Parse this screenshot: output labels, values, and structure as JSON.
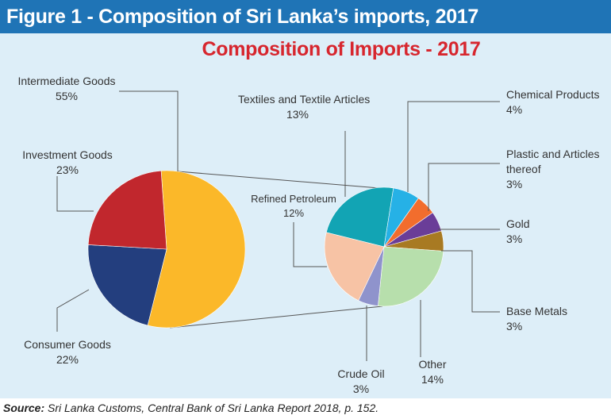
{
  "figure_title": "Figure 1 - Composition of Sri Lanka’s imports, 2017",
  "source": {
    "label": "Source:",
    "text": "Sri Lanka Customs, Central Bank of Sri Lanka Report 2018, p. 152."
  },
  "colors": {
    "header_bg": "#1f74b6",
    "panel_bg": "#ddeef8",
    "title": "#d7262e"
  },
  "chart_data": {
    "type": "pie",
    "title": "Composition of Imports - 2017",
    "main_pie": {
      "slices": [
        {
          "label": "Intermediate Goods",
          "value": 55,
          "value_label": "55%",
          "color": "#fbb829"
        },
        {
          "label": "Consumer Goods",
          "value": 22,
          "value_label": "22%",
          "color": "#233e7e"
        },
        {
          "label": "Investment Goods",
          "value": 23,
          "value_label": "23%",
          "color": "#c1272d"
        }
      ]
    },
    "breakdown_of": "Intermediate Goods",
    "breakdown_pie": {
      "slices": [
        {
          "label": "Textiles and Textile Articles",
          "value": 13,
          "value_label": "13%",
          "color": "#12a4b4"
        },
        {
          "label": "Chemical Products",
          "value": 4,
          "value_label": "4%",
          "color": "#26b1e6"
        },
        {
          "label": "Plastic and Articles thereof",
          "value": 3,
          "value_label": "3%",
          "color": "#f26d2d"
        },
        {
          "label": "Gold",
          "value": 3,
          "value_label": "3%",
          "color": "#6a3d98"
        },
        {
          "label": "Base Metals",
          "value": 3,
          "value_label": "3%",
          "color": "#a87a22"
        },
        {
          "label": "Other",
          "value": 14,
          "value_label": "14%",
          "color": "#b7dfac"
        },
        {
          "label": "Crude Oil",
          "value": 3,
          "value_label": "3%",
          "color": "#8f93cc"
        },
        {
          "label": "Refined Petroleum",
          "value": 12,
          "value_label": "12%",
          "color": "#f7c3a5"
        }
      ]
    }
  }
}
